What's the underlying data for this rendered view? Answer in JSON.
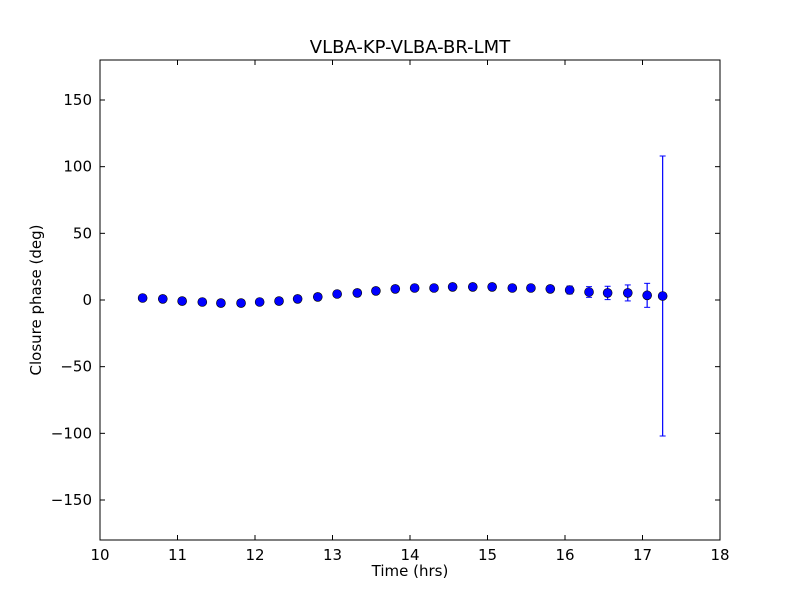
{
  "chart_data": {
    "type": "scatter",
    "title": "VLBA-KP-VLBA-BR-LMT",
    "xlabel": "Time (hrs)",
    "ylabel": "Closure phase (deg)",
    "xlim": [
      10,
      18
    ],
    "ylim": [
      -180,
      180
    ],
    "xticks": [
      10,
      11,
      12,
      13,
      14,
      15,
      16,
      17,
      18
    ],
    "yticks": [
      -150,
      -100,
      -50,
      0,
      50,
      100,
      150
    ],
    "ytick_labels": [
      "−150",
      "−100",
      "−50",
      "0",
      "50",
      "100",
      "150"
    ],
    "grid": false,
    "marker_color": "#0000ff",
    "x": [
      10.55,
      10.81,
      11.06,
      11.32,
      11.56,
      11.82,
      12.06,
      12.31,
      12.55,
      12.81,
      13.06,
      13.32,
      13.56,
      13.81,
      14.06,
      14.31,
      14.55,
      14.81,
      15.06,
      15.32,
      15.56,
      15.81,
      16.06,
      16.31,
      16.55,
      16.81,
      17.06,
      17.26
    ],
    "y": [
      1.5,
      0.8,
      -0.8,
      -1.5,
      -2.3,
      -2.3,
      -1.5,
      -0.8,
      0.8,
      2.3,
      4.5,
      5.3,
      6.8,
      8.3,
      9,
      9,
      9.8,
      9.8,
      9.8,
      9,
      9,
      8.3,
      7.5,
      6,
      5.3,
      5.3,
      3.5,
      3
    ],
    "yerr": [
      2,
      1.5,
      1.5,
      1.5,
      1.5,
      1.5,
      1.5,
      1.5,
      1.5,
      1.5,
      1.5,
      1.5,
      1.5,
      1.5,
      1.5,
      1.5,
      1.5,
      1.5,
      1.5,
      1.5,
      2,
      2,
      3,
      4,
      5,
      6,
      9,
      105
    ]
  }
}
